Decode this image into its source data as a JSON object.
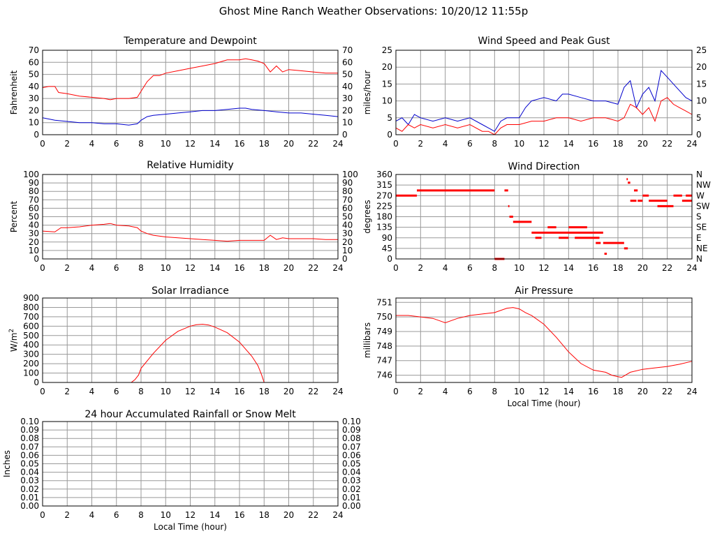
{
  "page_title": "Ghost Mine Ranch Weather Observations: 10/20/12 11:55p",
  "colors": {
    "grid": "#999999",
    "red": "#ff0000",
    "blue": "#0000cc",
    "frame": "#000000"
  },
  "chart_data": [
    {
      "id": "temperature",
      "type": "line",
      "title": "Temperature and Dewpoint",
      "ylabel": "Fahrenheit",
      "xlabel": "",
      "xlim": [
        0,
        24
      ],
      "ylim": [
        0,
        70
      ],
      "xticks": [
        "0",
        "2",
        "4",
        "6",
        "8",
        "10",
        "12",
        "14",
        "16",
        "18",
        "20",
        "22",
        "24"
      ],
      "yticks": [
        "0",
        "10",
        "20",
        "30",
        "40",
        "50",
        "60",
        "70"
      ],
      "right_yticks": [
        "0",
        "10",
        "20",
        "30",
        "40",
        "50",
        "60",
        "70"
      ],
      "grid": true,
      "series": [
        {
          "color": "red",
          "x": [
            0,
            0.5,
            1,
            1.3,
            2,
            3,
            4,
            5,
            5.5,
            6,
            7,
            7.7,
            8,
            8.5,
            9,
            9.5,
            10,
            11,
            12,
            13,
            14,
            15,
            16,
            16.5,
            17,
            17.5,
            18,
            18.5,
            19,
            19.5,
            20,
            21,
            22,
            23,
            24
          ],
          "y": [
            39,
            40,
            40,
            35,
            34,
            32,
            31,
            30,
            29,
            30,
            30,
            31,
            36,
            44,
            49,
            49,
            51,
            53,
            55,
            57,
            59,
            62,
            62,
            63,
            62,
            61,
            59,
            52,
            57,
            52,
            54,
            53,
            52,
            51,
            51
          ]
        },
        {
          "color": "blue",
          "x": [
            0,
            1,
            2,
            3,
            4,
            5,
            6,
            7,
            7.7,
            8,
            8.5,
            9,
            10,
            11,
            12,
            13,
            14,
            15,
            16,
            16.5,
            17,
            18,
            19,
            20,
            21,
            22,
            23,
            24
          ],
          "y": [
            14,
            12,
            11,
            10,
            10,
            9,
            9,
            8,
            9,
            12,
            15,
            16,
            17,
            18,
            19,
            20,
            20,
            21,
            22,
            22,
            21,
            20,
            19,
            18,
            18,
            17,
            16,
            15
          ]
        }
      ]
    },
    {
      "id": "humidity",
      "type": "line",
      "title": "Relative Humidity",
      "ylabel": "Percent",
      "xlabel": "",
      "xlim": [
        0,
        24
      ],
      "ylim": [
        0,
        100
      ],
      "xticks": [
        "0",
        "2",
        "4",
        "6",
        "8",
        "10",
        "12",
        "14",
        "16",
        "18",
        "20",
        "22",
        "24"
      ],
      "yticks": [
        "0",
        "10",
        "20",
        "30",
        "40",
        "50",
        "60",
        "70",
        "80",
        "90",
        "100"
      ],
      "right_yticks": [
        "0",
        "10",
        "20",
        "30",
        "40",
        "50",
        "60",
        "70",
        "80",
        "90",
        "100"
      ],
      "grid": true,
      "series": [
        {
          "color": "red",
          "x": [
            0,
            1,
            1.5,
            2,
            3,
            4,
            5,
            5.5,
            6,
            7,
            7.7,
            8,
            8.5,
            9,
            10,
            11,
            12,
            13,
            14,
            15,
            16,
            17,
            18,
            18.5,
            19,
            19.5,
            20,
            21,
            22,
            23,
            24
          ],
          "y": [
            33,
            32,
            37,
            37,
            38,
            40,
            41,
            42,
            40,
            39,
            37,
            33,
            30,
            28,
            26,
            25,
            24,
            23,
            22,
            21,
            22,
            22,
            22,
            28,
            23,
            25,
            24,
            24,
            24,
            23,
            23
          ]
        }
      ]
    },
    {
      "id": "solar",
      "type": "line",
      "title": "Solar Irradiance",
      "ylabel": "W/m2",
      "xlabel": "",
      "xlim": [
        0,
        24
      ],
      "ylim": [
        0,
        900
      ],
      "xticks": [
        "0",
        "2",
        "4",
        "6",
        "8",
        "10",
        "12",
        "14",
        "16",
        "18",
        "20",
        "22",
        "24"
      ],
      "yticks": [
        "0",
        "100",
        "200",
        "300",
        "400",
        "500",
        "600",
        "700",
        "800",
        "900"
      ],
      "grid": true,
      "series": [
        {
          "color": "red",
          "x": [
            0,
            7.2,
            7.5,
            7.8,
            8,
            9,
            10,
            11,
            12,
            12.5,
            13,
            13.5,
            14,
            15,
            16,
            17,
            17.5,
            17.8,
            18,
            24
          ],
          "y": [
            0,
            0,
            30,
            80,
            150,
            310,
            450,
            545,
            600,
            615,
            620,
            612,
            590,
            530,
            430,
            280,
            180,
            80,
            0,
            0
          ]
        }
      ]
    },
    {
      "id": "wind_speed",
      "type": "line",
      "title": "Wind Speed and Peak Gust",
      "ylabel": "miles/hour",
      "xlabel": "",
      "xlim": [
        0,
        24
      ],
      "ylim": [
        0,
        25
      ],
      "xticks": [
        "0",
        "2",
        "4",
        "6",
        "8",
        "10",
        "12",
        "14",
        "16",
        "18",
        "20",
        "22",
        "24"
      ],
      "yticks": [
        "0",
        "5",
        "10",
        "15",
        "20",
        "25"
      ],
      "right_yticks": [
        "0",
        "5",
        "10",
        "15",
        "20",
        "25"
      ],
      "grid": true,
      "series": [
        {
          "color": "blue",
          "x": [
            0,
            0.5,
            1,
            1.5,
            2,
            3,
            4,
            5,
            6,
            7,
            7.5,
            8,
            8.5,
            9,
            10,
            10.5,
            11,
            12,
            13,
            13.5,
            14,
            15,
            16,
            17,
            18,
            18.5,
            19,
            19.5,
            20,
            20.5,
            21,
            21.5,
            22,
            22.5,
            23,
            23.5,
            24
          ],
          "y": [
            4,
            5,
            3,
            6,
            5,
            4,
            5,
            4,
            5,
            3,
            2,
            1,
            4,
            5,
            5,
            8,
            10,
            11,
            10,
            12,
            12,
            11,
            10,
            10,
            9,
            14,
            16,
            8,
            12,
            14,
            10,
            19,
            17,
            15,
            13,
            11,
            10
          ]
        },
        {
          "color": "red",
          "x": [
            0,
            0.5,
            1,
            1.5,
            2,
            3,
            4,
            5,
            6,
            7,
            7.5,
            8,
            8.5,
            9,
            10,
            11,
            12,
            13,
            14,
            15,
            16,
            17,
            18,
            18.5,
            19,
            19.5,
            20,
            20.5,
            21,
            21.5,
            22,
            22.5,
            23,
            23.5,
            24
          ],
          "y": [
            2,
            1,
            3,
            2,
            3,
            2,
            3,
            2,
            3,
            1,
            1,
            0,
            2,
            3,
            3,
            4,
            4,
            5,
            5,
            4,
            5,
            5,
            4,
            5,
            9,
            8,
            6,
            8,
            4,
            10,
            11,
            9,
            8,
            7,
            6
          ]
        }
      ]
    },
    {
      "id": "wind_direction",
      "type": "scatter",
      "title": "Wind Direction",
      "ylabel": "degrees",
      "xlabel": "",
      "xlim": [
        0,
        24
      ],
      "ylim": [
        0,
        360
      ],
      "xticks": [
        "0",
        "2",
        "4",
        "6",
        "8",
        "10",
        "12",
        "14",
        "16",
        "18",
        "20",
        "22",
        "24"
      ],
      "yticks": [
        "0",
        "45",
        "90",
        "135",
        "180",
        "225",
        "270",
        "315",
        "360"
      ],
      "right_yticks": [
        "N",
        "NE",
        "E",
        "SE",
        "S",
        "SW",
        "W",
        "NW",
        "N"
      ],
      "grid": true,
      "segments": [
        [
          0,
          1.7,
          270
        ],
        [
          1.7,
          8,
          292
        ],
        [
          8,
          8.8,
          0
        ],
        [
          8.8,
          9.1,
          292
        ],
        [
          9.1,
          9.2,
          225
        ],
        [
          9.2,
          9.5,
          180
        ],
        [
          9.5,
          11,
          158
        ],
        [
          11,
          12,
          112
        ],
        [
          11.3,
          11.8,
          90
        ],
        [
          12,
          13.5,
          112
        ],
        [
          12.3,
          13,
          135
        ],
        [
          13.5,
          16,
          112
        ],
        [
          13.2,
          14,
          90
        ],
        [
          14,
          15.5,
          135
        ],
        [
          14.5,
          16.5,
          90
        ],
        [
          16,
          16.8,
          112
        ],
        [
          16.8,
          18.5,
          68
        ],
        [
          16.2,
          16.6,
          68
        ],
        [
          16.9,
          17.1,
          22
        ],
        [
          18.5,
          18.8,
          45
        ],
        [
          18.7,
          18.8,
          340
        ],
        [
          18.8,
          19,
          325
        ],
        [
          19,
          19.5,
          248
        ],
        [
          19.3,
          19.6,
          292
        ],
        [
          19.6,
          20,
          248
        ],
        [
          20,
          20.5,
          270
        ],
        [
          20.5,
          22,
          248
        ],
        [
          21.2,
          22.5,
          225
        ],
        [
          22.5,
          23.2,
          270
        ],
        [
          23.2,
          24,
          248
        ],
        [
          23.5,
          24,
          270
        ]
      ]
    },
    {
      "id": "pressure",
      "type": "line",
      "title": "Air Pressure",
      "ylabel": "millibars",
      "xlabel": "Local Time (hour)",
      "xlim": [
        0,
        24
      ],
      "ylim": [
        745.5,
        751.3
      ],
      "xticks": [
        "0",
        "2",
        "4",
        "6",
        "8",
        "10",
        "12",
        "14",
        "16",
        "18",
        "20",
        "22",
        "24"
      ],
      "yticks": [
        "746",
        "747",
        "748",
        "749",
        "750",
        "751"
      ],
      "grid": true,
      "series": [
        {
          "color": "red",
          "x": [
            0,
            1,
            2,
            3,
            4,
            5,
            6,
            7,
            8,
            9,
            9.5,
            10,
            10.5,
            11,
            12,
            13,
            14,
            15,
            16,
            17,
            17.5,
            18,
            18.3,
            18.6,
            19,
            20,
            21,
            22,
            23,
            24
          ],
          "y": [
            750.1,
            750.1,
            750.0,
            749.9,
            749.6,
            749.9,
            750.1,
            750.2,
            750.3,
            750.6,
            750.65,
            750.55,
            750.3,
            750.1,
            749.5,
            748.6,
            747.6,
            746.8,
            746.35,
            746.2,
            746.0,
            745.9,
            745.85,
            746.0,
            746.2,
            746.4,
            746.5,
            746.6,
            746.75,
            746.95
          ]
        }
      ]
    },
    {
      "id": "rain",
      "type": "line",
      "title": "24 hour Accumulated Rainfall or Snow Melt",
      "ylabel": "Inches",
      "xlabel": "Local Time (hour)",
      "xlim": [
        0,
        24
      ],
      "ylim": [
        0,
        0.1
      ],
      "xticks": [
        "0",
        "2",
        "4",
        "6",
        "8",
        "10",
        "12",
        "14",
        "16",
        "18",
        "20",
        "22",
        "24"
      ],
      "yticks": [
        "0.00",
        "0.01",
        "0.02",
        "0.03",
        "0.04",
        "0.05",
        "0.06",
        "0.07",
        "0.08",
        "0.09",
        "0.10"
      ],
      "right_yticks": [
        "0.00",
        "0.01",
        "0.02",
        "0.03",
        "0.04",
        "0.05",
        "0.06",
        "0.07",
        "0.08",
        "0.09",
        "0.10"
      ],
      "grid": true,
      "series": [
        {
          "color": "red",
          "x": [
            0,
            24
          ],
          "y": [
            0,
            0
          ]
        }
      ]
    }
  ]
}
